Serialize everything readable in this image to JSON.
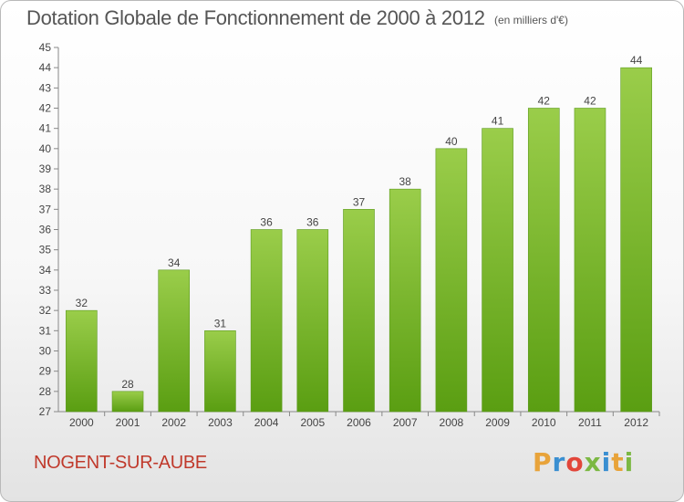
{
  "header": {
    "title": "Dotation Globale de Fonctionnement de 2000 à 2012",
    "unit_note": "(en milliers d'€)"
  },
  "footer": {
    "commune": "NOGENT-SUR-AUBE",
    "logo_text": "Proxiti"
  },
  "colors": {
    "bar_top": "#9acd4a",
    "bar_bottom": "#5a9e12",
    "commune_text": "#c0392b",
    "logo_letters": [
      "#e8a33a",
      "#3a8fd1",
      "#e2463a",
      "#7cb843",
      "#3a8fd1",
      "#e8a33a",
      "#7cb843"
    ]
  },
  "chart_data": {
    "type": "bar",
    "title": "Dotation Globale de Fonctionnement de 2000 à 2012",
    "subtitle": "(en milliers d'€)",
    "xlabel": "",
    "ylabel": "",
    "categories": [
      "2000",
      "2001",
      "2002",
      "2003",
      "2004",
      "2005",
      "2006",
      "2007",
      "2008",
      "2009",
      "2010",
      "2011",
      "2012"
    ],
    "values": [
      32,
      28,
      34,
      31,
      36,
      36,
      37,
      38,
      40,
      41,
      42,
      42,
      44
    ],
    "ylim": [
      27,
      45
    ],
    "yticks": [
      27,
      28,
      29,
      30,
      31,
      32,
      33,
      34,
      35,
      36,
      37,
      38,
      39,
      40,
      41,
      42,
      43,
      44,
      45
    ],
    "grid": false,
    "legend": "none"
  }
}
